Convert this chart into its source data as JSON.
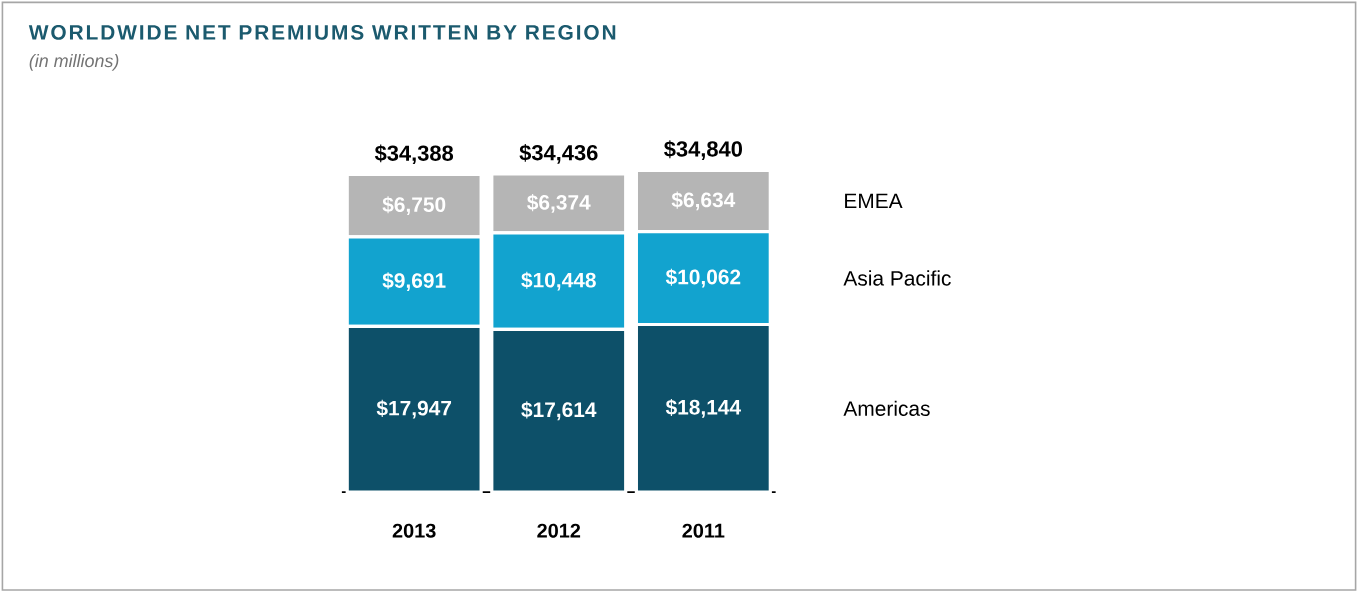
{
  "chart_data": {
    "type": "bar",
    "stacked": true,
    "title": "WORLDWIDE NET PREMIUMS WRITTEN BY REGION",
    "subtitle": "(in millions)",
    "categories": [
      "2013",
      "2012",
      "2011"
    ],
    "series": [
      {
        "name": "Americas",
        "color": "#0d5069",
        "values": [
          17947,
          17614,
          18144
        ],
        "value_labels": [
          "$17,947",
          "$17,614",
          "$18,144"
        ]
      },
      {
        "name": "Asia Pacific",
        "color": "#12a3cf",
        "values": [
          9691,
          10448,
          10062
        ],
        "value_labels": [
          "$9,691",
          "$10,448",
          "$10,062"
        ]
      },
      {
        "name": "EMEA",
        "color": "#b5b5b5",
        "values": [
          6750,
          6374,
          6634
        ],
        "value_labels": [
          "$6,750",
          "$6,374",
          "$6,634"
        ]
      }
    ],
    "totals": [
      "$34,388",
      "$34,436",
      "$34,840"
    ]
  }
}
